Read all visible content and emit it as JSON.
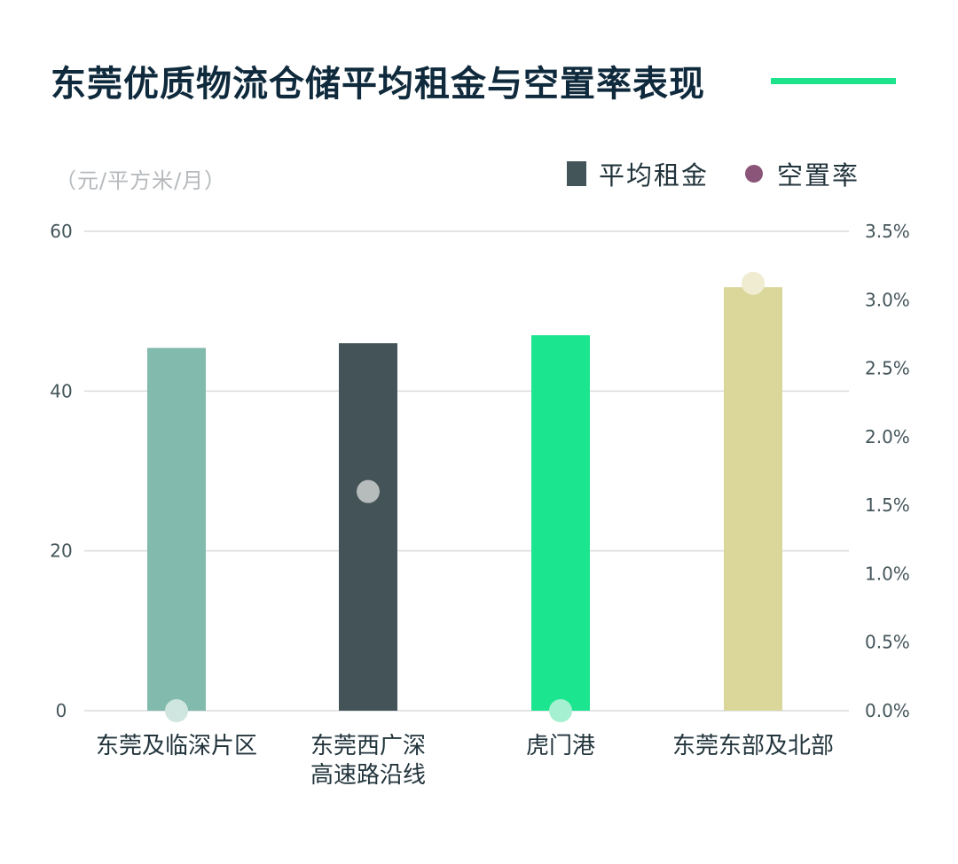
{
  "title": "东莞优质物流仓储平均租金与空置率表现",
  "unit_label": "（元/平方米/月）",
  "legend": {
    "rent_label": "平均租金",
    "vacancy_label": "空置率"
  },
  "colors": {
    "title": "#0f2a3c",
    "accent": "#1de38d",
    "legend_rent": "#44555a",
    "legend_vacancy": "#8a5578",
    "grid": "#d9dcdd"
  },
  "chart_data": {
    "type": "bar",
    "categories": [
      [
        "东莞及临深片区"
      ],
      [
        "东莞西广深",
        "高速路沿线"
      ],
      [
        "虎门港"
      ],
      [
        "东莞东部及北部"
      ]
    ],
    "series": [
      {
        "name": "平均租金",
        "axis": "left",
        "values": [
          45.4,
          46.0,
          47.0,
          53.0
        ],
        "colors": [
          "#82baad",
          "#435358",
          "#1be58e",
          "#dbd79b"
        ]
      },
      {
        "name": "空置率",
        "axis": "right",
        "type": "scatter",
        "values": [
          0.0,
          1.6,
          0.0,
          3.12
        ],
        "colors": [
          "#cfe5df",
          "#b6bbbc",
          "#a5f0d0",
          "#efecd2"
        ]
      }
    ],
    "ylim_left": [
      0,
      60
    ],
    "yticks_left": [
      "0",
      "20",
      "40",
      "60"
    ],
    "ylim_right": [
      0,
      3.5
    ],
    "yticks_right": [
      "0.0%",
      "0.5%",
      "1.0%",
      "1.5%",
      "2.0%",
      "2.5%",
      "3.0%",
      "3.5%"
    ],
    "grid": true,
    "legend_position": "top-right"
  }
}
